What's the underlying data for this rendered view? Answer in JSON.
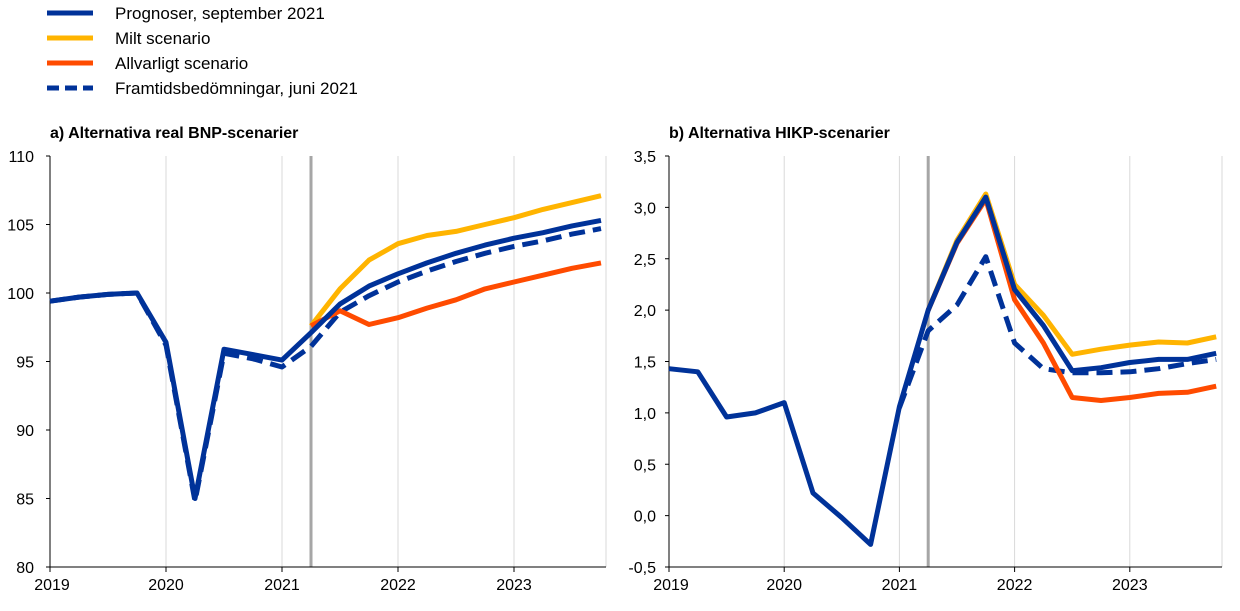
{
  "legend": [
    {
      "label": "Prognoser, september 2021",
      "color": "#003299",
      "dash": false
    },
    {
      "label": "Milt scenario",
      "color": "#ffb400",
      "dash": false
    },
    {
      "label": "Allvarligt scenario",
      "color": "#ff4b00",
      "dash": false
    },
    {
      "label": "Framtidsbedömningar, juni 2021",
      "color": "#003299",
      "dash": true
    }
  ],
  "chart_data": [
    {
      "type": "line",
      "title": "a) Alternativa real BNP-scenarier",
      "ylim": [
        80,
        110
      ],
      "yticks": [
        "80",
        "85",
        "90",
        "95",
        "100",
        "105",
        "110"
      ],
      "xticks": [
        "2019",
        "2020",
        "2021",
        "2022",
        "2023"
      ],
      "x_quarters": [
        "2019Q1",
        "2019Q2",
        "2019Q3",
        "2019Q4",
        "2020Q1",
        "2020Q2",
        "2020Q3",
        "2020Q4",
        "2021Q1",
        "2021Q2",
        "2021Q3",
        "2021Q4",
        "2022Q1",
        "2022Q2",
        "2022Q3",
        "2022Q4",
        "2023Q1",
        "2023Q2",
        "2023Q3",
        "2023Q4"
      ],
      "vertical_line": "2021Q2",
      "grid": "vertical",
      "series": [
        {
          "name": "Framtidsbedömningar, juni 2021",
          "start": "2019Q1",
          "values": [
            99.4,
            99.7,
            99.9,
            100.0,
            96.2,
            84.8,
            95.6,
            95.2,
            94.6,
            96.1,
            98.6,
            99.8,
            100.8,
            101.6,
            102.3,
            102.9,
            103.4,
            103.8,
            104.3,
            104.7
          ]
        },
        {
          "name": "Milt scenario",
          "start": "2021Q2",
          "values": [
            97.6,
            100.3,
            102.4,
            103.6,
            104.2,
            104.5,
            105.0,
            105.5,
            106.1,
            106.6,
            107.1
          ]
        },
        {
          "name": "Allvarligt scenario",
          "start": "2021Q2",
          "values": [
            97.6,
            98.7,
            97.7,
            98.2,
            98.9,
            99.5,
            100.3,
            100.8,
            101.3,
            101.8,
            102.2
          ]
        },
        {
          "name": "Prognoser, september 2021",
          "start": "2019Q1",
          "values": [
            99.4,
            99.7,
            99.9,
            100.0,
            96.4,
            85.0,
            95.9,
            95.5,
            95.1,
            97.1,
            99.2,
            100.5,
            101.4,
            102.2,
            102.9,
            103.5,
            104.0,
            104.4,
            104.9,
            105.3
          ]
        }
      ]
    },
    {
      "type": "line",
      "title": "b) Alternativa HIKP-scenarier",
      "ylim": [
        -0.5,
        3.5
      ],
      "yticks": [
        "-0,5",
        "0,0",
        "0,5",
        "1,0",
        "1,5",
        "2,0",
        "2,5",
        "3,0",
        "3,5"
      ],
      "xticks": [
        "2019",
        "2020",
        "2021",
        "2022",
        "2023"
      ],
      "x_quarters": [
        "2019Q1",
        "2019Q2",
        "2019Q3",
        "2019Q4",
        "2020Q1",
        "2020Q2",
        "2020Q3",
        "2020Q4",
        "2021Q1",
        "2021Q2",
        "2021Q3",
        "2021Q4",
        "2022Q1",
        "2022Q2",
        "2022Q3",
        "2022Q4",
        "2023Q1",
        "2023Q2",
        "2023Q3",
        "2023Q4"
      ],
      "vertical_line": "2021Q2",
      "grid": "vertical",
      "series": [
        {
          "name": "Framtidsbedömningar, juni 2021",
          "start": "2021Q1",
          "values": [
            1.05,
            1.8,
            2.05,
            2.52,
            1.68,
            1.43,
            1.39,
            1.39,
            1.4,
            1.43,
            1.48,
            1.52
          ]
        },
        {
          "name": "Milt scenario",
          "start": "2021Q2",
          "values": [
            2.0,
            2.68,
            3.13,
            2.25,
            1.95,
            1.57,
            1.62,
            1.66,
            1.69,
            1.68,
            1.74
          ]
        },
        {
          "name": "Allvarligt scenario",
          "start": "2021Q2",
          "values": [
            2.0,
            2.65,
            3.08,
            2.1,
            1.68,
            1.15,
            1.12,
            1.15,
            1.19,
            1.2,
            1.26
          ]
        },
        {
          "name": "Prognoser, september 2021",
          "start": "2019Q1",
          "values": [
            1.43,
            1.4,
            0.96,
            1.0,
            1.1,
            0.22,
            -0.02,
            -0.28,
            1.06,
            2.0,
            2.66,
            3.1,
            2.2,
            1.85,
            1.41,
            1.44,
            1.49,
            1.52,
            1.52,
            1.58
          ]
        }
      ]
    }
  ]
}
